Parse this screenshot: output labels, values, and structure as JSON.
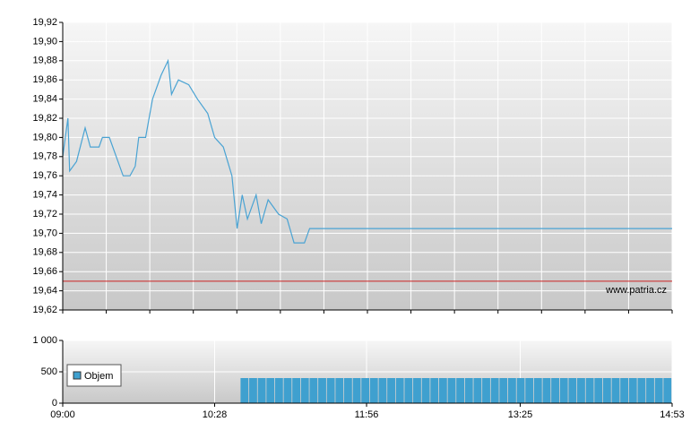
{
  "chart_data": [
    {
      "type": "line",
      "xlim": [
        "09:00",
        "14:53"
      ],
      "ylim": [
        19.62,
        19.92
      ],
      "yticks": [
        {
          "value": 19.62,
          "label": "19,62"
        },
        {
          "value": 19.64,
          "label": "19,64"
        },
        {
          "value": 19.66,
          "label": "19,66"
        },
        {
          "value": 19.68,
          "label": "19,68"
        },
        {
          "value": 19.7,
          "label": "19,70"
        },
        {
          "value": 19.72,
          "label": "19,72"
        },
        {
          "value": 19.74,
          "label": "19,74"
        },
        {
          "value": 19.76,
          "label": "19,76"
        },
        {
          "value": 19.78,
          "label": "19,78"
        },
        {
          "value": 19.8,
          "label": "19,80"
        },
        {
          "value": 19.82,
          "label": "19,82"
        },
        {
          "value": 19.84,
          "label": "19,84"
        },
        {
          "value": 19.86,
          "label": "19,86"
        },
        {
          "value": 19.88,
          "label": "19,88"
        },
        {
          "value": 19.9,
          "label": "19,90"
        },
        {
          "value": 19.92,
          "label": "19,92"
        }
      ],
      "grid": true,
      "reference_line": {
        "value": 19.65,
        "color": "#cc2222"
      },
      "watermark": "www.patria.cz",
      "series": [
        {
          "color": "#4aa3d3",
          "x": [
            "09:00",
            "09:03",
            "09:04",
            "09:08",
            "09:13",
            "09:16",
            "09:21",
            "09:23",
            "09:27",
            "09:31",
            "09:35",
            "09:39",
            "09:42",
            "09:44",
            "09:48",
            "09:52",
            "09:57",
            "10:01",
            "10:03",
            "10:07",
            "10:13",
            "10:18",
            "10:24",
            "10:28",
            "10:33",
            "10:38",
            "10:41",
            "10:44",
            "10:47",
            "10:52",
            "10:55",
            "10:59",
            "11:05",
            "11:10",
            "11:14",
            "11:20",
            "11:23",
            "14:53"
          ],
          "values": [
            19.78,
            19.82,
            19.765,
            19.775,
            19.81,
            19.79,
            19.79,
            19.8,
            19.8,
            19.78,
            19.76,
            19.76,
            19.77,
            19.8,
            19.8,
            19.84,
            19.865,
            19.88,
            19.845,
            19.86,
            19.855,
            19.84,
            19.825,
            19.8,
            19.79,
            19.76,
            19.705,
            19.74,
            19.715,
            19.74,
            19.71,
            19.735,
            19.72,
            19.715,
            19.69,
            19.69,
            19.705,
            19.705
          ]
        }
      ]
    },
    {
      "type": "bar",
      "xlim": [
        "09:00",
        "14:53"
      ],
      "xticks": [
        "09:00",
        "10:28",
        "11:56",
        "13:25",
        "14:53"
      ],
      "ylim": [
        0,
        1000
      ],
      "yticks": [
        0,
        500,
        {
          "value": 1000,
          "label": "1 000"
        }
      ],
      "grid": true,
      "series": [
        {
          "name": "Objem",
          "color": "#3fa0cf",
          "x": [
            "10:43",
            "10:48",
            "10:53",
            "10:58",
            "11:03",
            "11:08",
            "11:13",
            "11:18",
            "11:23",
            "11:28",
            "11:33",
            "11:38",
            "11:43",
            "11:48",
            "11:53",
            "11:58",
            "12:03",
            "12:08",
            "12:13",
            "12:18",
            "12:23",
            "12:28",
            "12:33",
            "12:38",
            "12:43",
            "12:48",
            "12:53",
            "12:58",
            "13:03",
            "13:08",
            "13:13",
            "13:18",
            "13:23",
            "13:28",
            "13:33",
            "13:38",
            "13:43",
            "13:48",
            "13:53",
            "13:58",
            "14:03",
            "14:08",
            "14:13",
            "14:18",
            "14:23",
            "14:28",
            "14:33",
            "14:38",
            "14:43",
            "14:48"
          ],
          "values": [
            400,
            400,
            400,
            400,
            400,
            400,
            400,
            400,
            400,
            400,
            400,
            400,
            400,
            400,
            400,
            400,
            400,
            400,
            400,
            400,
            400,
            400,
            400,
            400,
            400,
            400,
            400,
            400,
            400,
            400,
            400,
            400,
            400,
            400,
            400,
            400,
            400,
            400,
            400,
            400,
            400,
            400,
            400,
            400,
            400,
            400,
            400,
            400,
            400,
            400
          ]
        }
      ]
    }
  ]
}
